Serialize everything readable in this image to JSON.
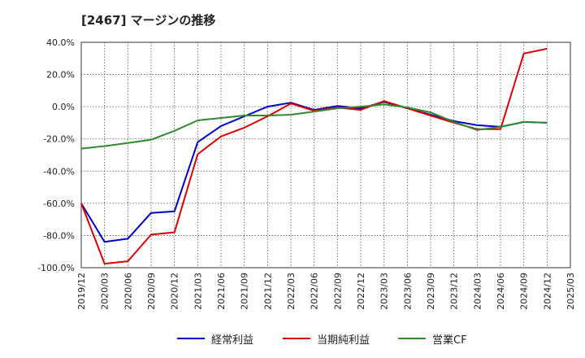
{
  "header": {
    "title": "[2467]  マージンの推移"
  },
  "chart_data": {
    "type": "line",
    "title": "[2467]  マージンの推移",
    "xlabel": "",
    "ylabel": "",
    "ylim": [
      -100,
      40
    ],
    "y_ticks": [
      40,
      20,
      0,
      -20,
      -40,
      -60,
      -80,
      -100
    ],
    "y_tick_labels": [
      "40.0%",
      "20.0%",
      "0.0%",
      "-20.0%",
      "-40.0%",
      "-60.0%",
      "-80.0%",
      "-100.0%"
    ],
    "categories": [
      "2019/12",
      "2020/03",
      "2020/06",
      "2020/09",
      "2020/12",
      "2021/03",
      "2021/06",
      "2021/09",
      "2021/12",
      "2022/03",
      "2022/06",
      "2022/09",
      "2022/12",
      "2023/03",
      "2023/06",
      "2023/09",
      "2023/12",
      "2024/03",
      "2024/06",
      "2024/09",
      "2024/12",
      "2025/03"
    ],
    "grid": true,
    "series": [
      {
        "name": "経常利益",
        "color": "#0000cc",
        "values": [
          -60,
          -84,
          -82,
          -66,
          -65,
          -22,
          -12,
          -6,
          0,
          2.5,
          -2,
          0.5,
          -1,
          3,
          -1,
          -5,
          -9,
          -11.5,
          -12.5,
          -9.5,
          -10,
          null
        ]
      },
      {
        "name": "当期純利益",
        "color": "#dd0000",
        "values": [
          -60,
          -97.5,
          -96,
          -79.5,
          -78,
          -29.5,
          -18.5,
          -13,
          -6,
          2,
          -2.5,
          -0.5,
          -2,
          3.5,
          -1,
          -5.5,
          -10,
          -14,
          -14,
          33,
          36,
          null
        ]
      },
      {
        "name": "営業CF",
        "color": "#2e8b2e",
        "values": [
          -26,
          -24.5,
          -22.5,
          -20.5,
          -15,
          -8.5,
          -7,
          -5.5,
          -5.5,
          -5,
          -3,
          -1,
          0,
          1.5,
          -0.5,
          -3.5,
          -9.5,
          -14.5,
          -12.5,
          -9.5,
          -10,
          null
        ]
      }
    ],
    "legend_position": "bottom-center"
  }
}
